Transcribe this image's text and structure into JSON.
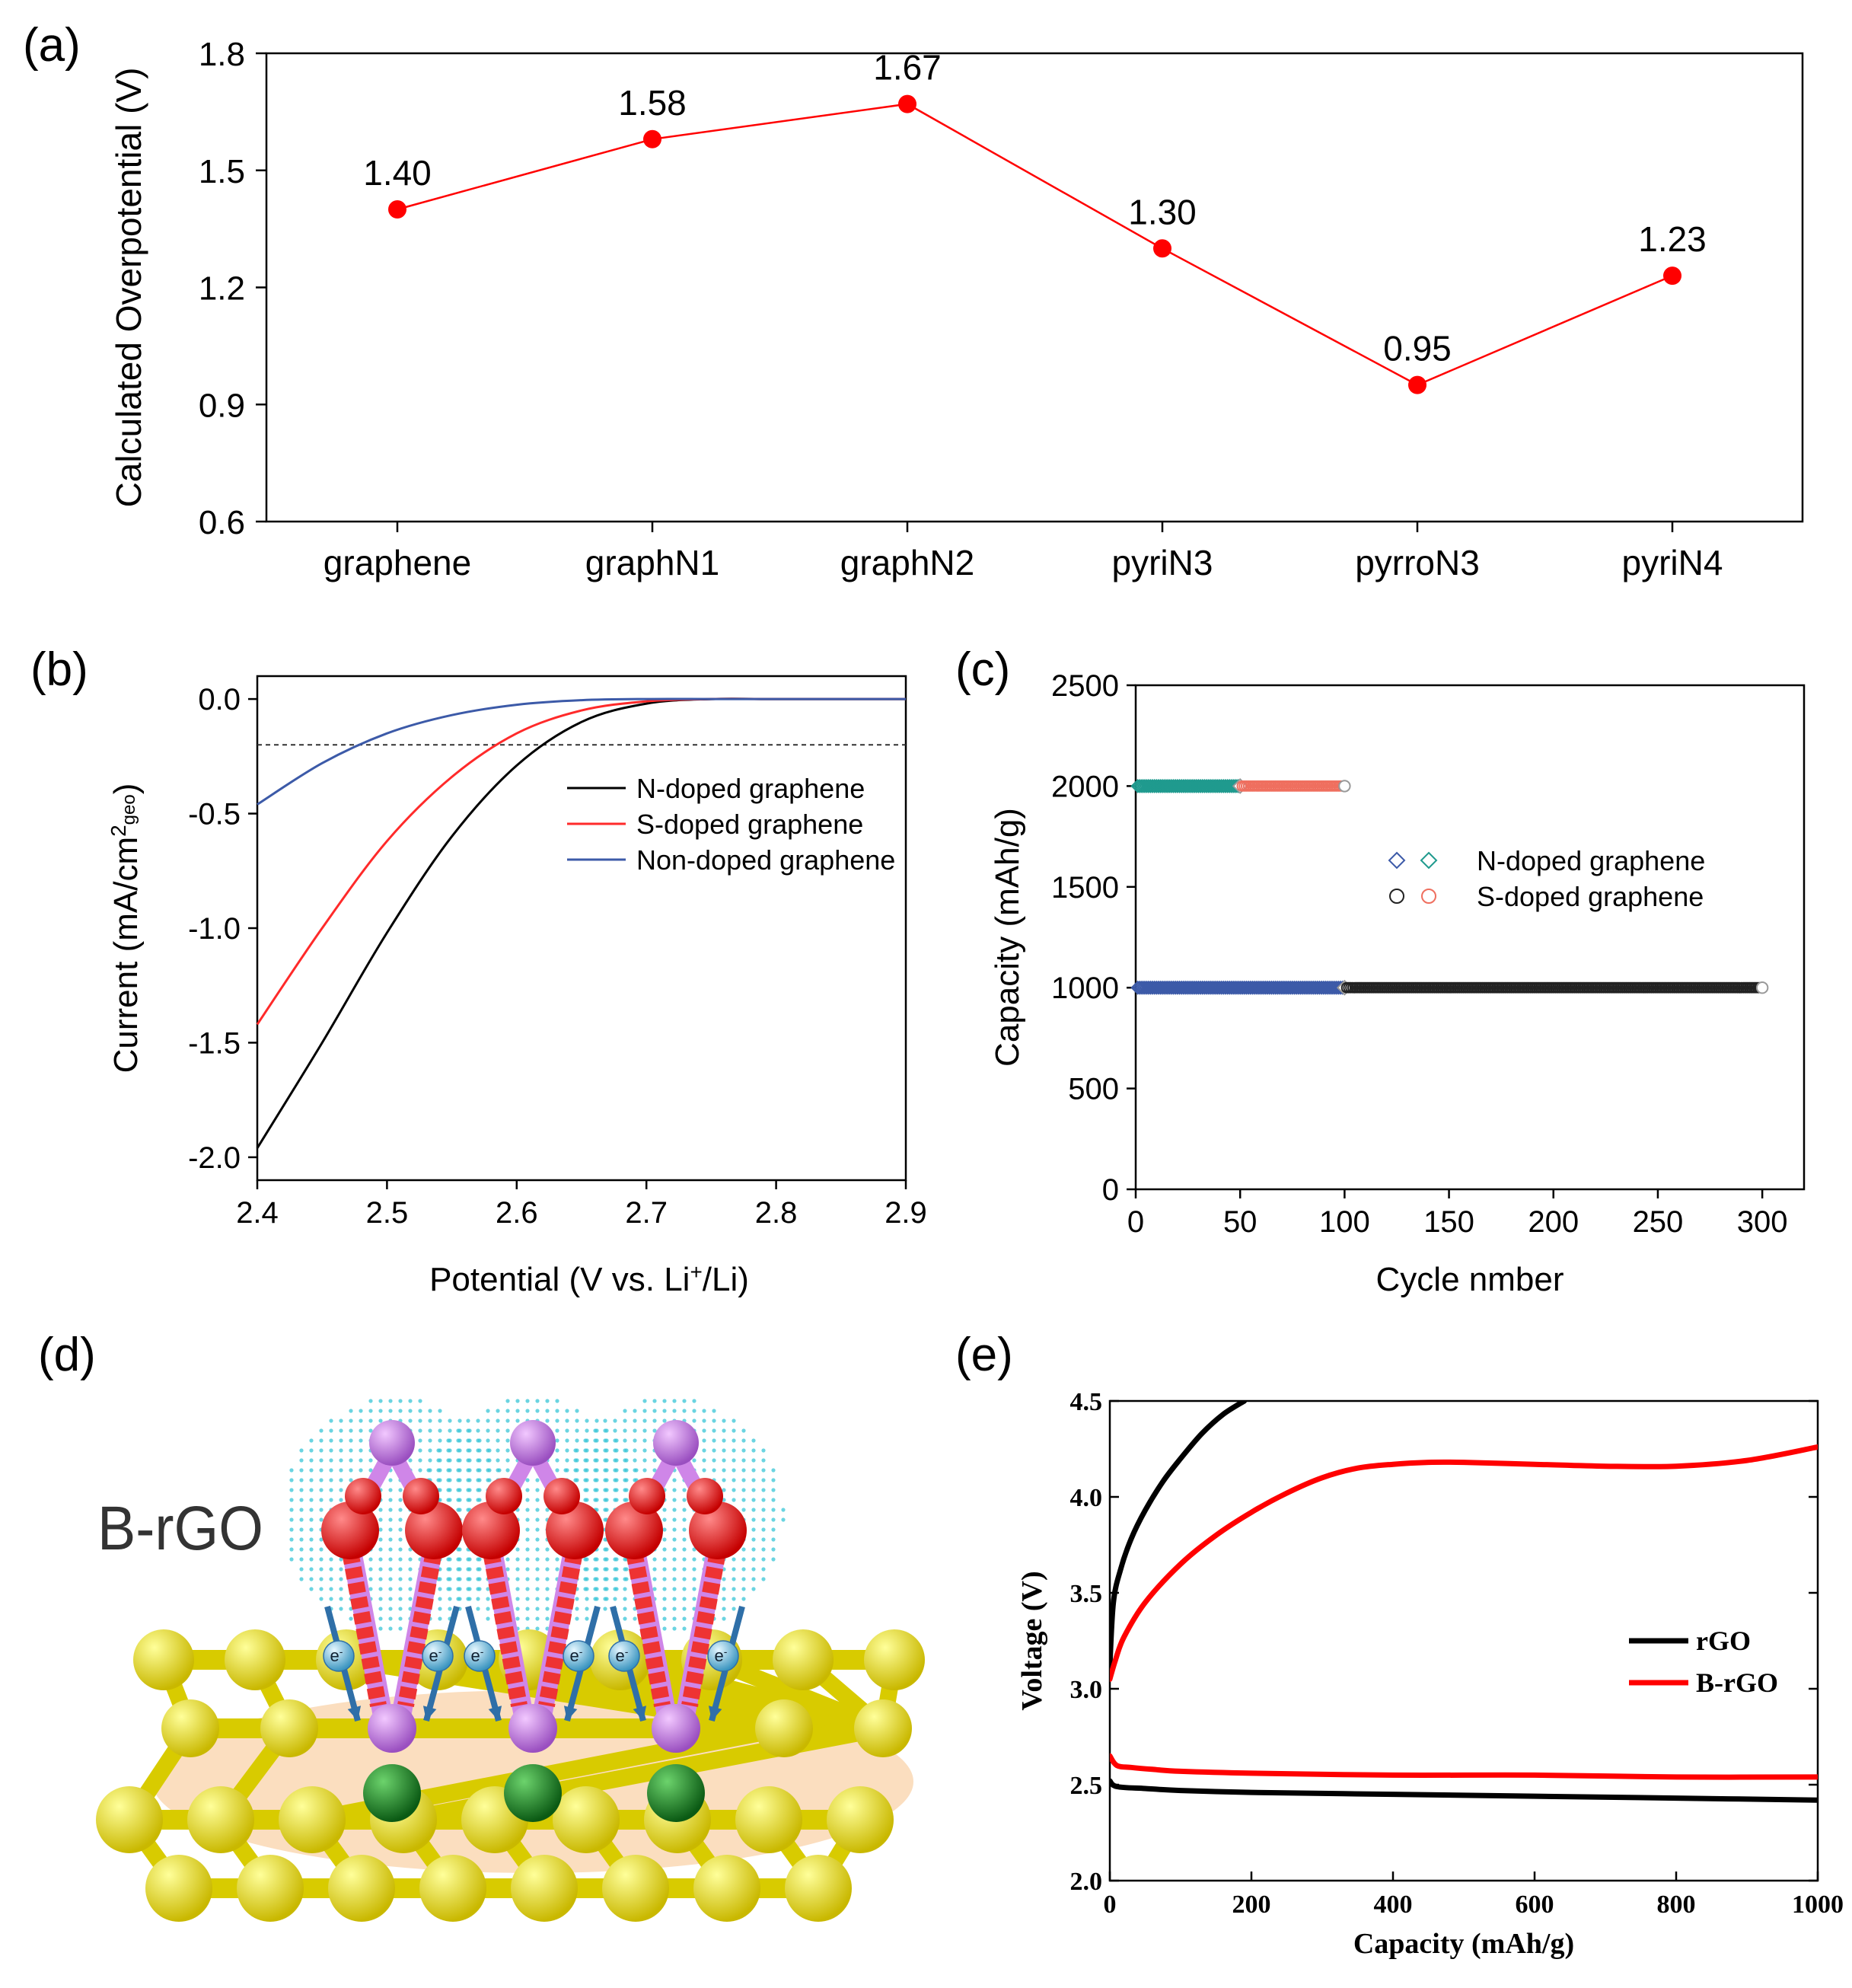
{
  "panel_labels": {
    "a": "(a)",
    "b": "(b)",
    "c": "(c)",
    "d": "(d)",
    "e": "(e)"
  },
  "panel_d": {
    "label": "B-rGO",
    "electron": "e",
    "electron_sup": "-"
  },
  "colors": {
    "red": "#ff0000",
    "black": "#000000",
    "blue": "#3c5aa8",
    "teal": "#1f9a8e",
    "salmon": "#ef6f5f",
    "yellow": "#f2ea12",
    "pink": "#cf86e8",
    "green": "#1d8a2e",
    "cyan": "#39c5d7"
  },
  "chart_data": [
    {
      "id": "a",
      "type": "line",
      "ylabel": "Calculated Overpotential (V)",
      "categories": [
        "graphene",
        "graphN1",
        "graphN2",
        "pyriN3",
        "pyrroN3",
        "pyriN4"
      ],
      "values": [
        1.4,
        1.58,
        1.67,
        1.3,
        0.95,
        1.23
      ],
      "data_labels": [
        "1.40",
        "1.58",
        "1.67",
        "1.30",
        "0.95",
        "1.23"
      ],
      "ylim": [
        0.6,
        1.8
      ],
      "yticks": [
        "0.6",
        "0.9",
        "1.2",
        "1.5",
        "1.8"
      ],
      "color": "#ff0000"
    },
    {
      "id": "b",
      "type": "line",
      "xlabel": "Potential (V vs. Li",
      "xlabel_sup": "+",
      "xlabel_end": "/Li)",
      "ylabel": "Current (mA/cm",
      "ylabel_sup": "2",
      "ylabel_sub": "geo",
      "ylabel_end": ")",
      "xlim": [
        2.4,
        2.9
      ],
      "ylim": [
        -2.1,
        0.1
      ],
      "xticks": [
        "2.4",
        "2.5",
        "2.6",
        "2.7",
        "2.8",
        "2.9"
      ],
      "yticks": [
        "0.0",
        "-0.5",
        "-1.0",
        "-1.5",
        "-2.0"
      ],
      "reference_line": -0.2,
      "legend": "top-right",
      "series": [
        {
          "name": "N-doped graphene",
          "color": "#000000",
          "x": [
            2.4,
            2.45,
            2.5,
            2.55,
            2.6,
            2.65,
            2.7,
            2.75,
            2.8,
            2.9
          ],
          "y": [
            -1.96,
            -1.5,
            -1.02,
            -0.6,
            -0.29,
            -0.1,
            -0.02,
            0.0,
            0.0,
            0.0
          ]
        },
        {
          "name": "S-doped graphene",
          "color": "#ff2a2a",
          "x": [
            2.4,
            2.45,
            2.5,
            2.55,
            2.6,
            2.65,
            2.7,
            2.75,
            2.8,
            2.9
          ],
          "y": [
            -1.42,
            -1.0,
            -0.62,
            -0.34,
            -0.15,
            -0.05,
            -0.01,
            0.0,
            0.0,
            0.0
          ]
        },
        {
          "name": "Non-doped graphene",
          "color": "#3c5aa8",
          "x": [
            2.4,
            2.45,
            2.5,
            2.55,
            2.6,
            2.65,
            2.7,
            2.75,
            2.8,
            2.9
          ],
          "y": [
            -0.46,
            -0.28,
            -0.15,
            -0.07,
            -0.025,
            -0.005,
            0.0,
            0.0,
            0.0,
            0.0
          ]
        }
      ]
    },
    {
      "id": "c",
      "type": "scatter",
      "xlabel": "Cycle nmber",
      "ylabel": "Capacity (mAh/g)",
      "xlim": [
        0,
        320
      ],
      "ylim": [
        0,
        2500
      ],
      "xticks": [
        "0",
        "50",
        "100",
        "150",
        "200",
        "250",
        "300"
      ],
      "yticks": [
        "0",
        "500",
        "1000",
        "1500",
        "2000",
        "2500"
      ],
      "legend": "center-right",
      "legend_entries": [
        "N-doped graphene",
        "S-doped graphene"
      ],
      "series": [
        {
          "group": "N-doped graphene",
          "marker": "diamond",
          "color": "#1f9a8e",
          "cycles": [
            1,
            50
          ],
          "capacity": 2000
        },
        {
          "group": "S-doped graphene",
          "marker": "circle",
          "color": "#ef6f5f",
          "cycles": [
            51,
            100
          ],
          "capacity": 2000
        },
        {
          "group": "N-doped graphene",
          "marker": "diamond",
          "color": "#3c5aa8",
          "cycles": [
            1,
            100
          ],
          "capacity": 1000
        },
        {
          "group": "S-doped graphene",
          "marker": "circle",
          "color": "#222222",
          "cycles": [
            101,
            300
          ],
          "capacity": 1000
        }
      ]
    },
    {
      "id": "e",
      "type": "line",
      "xlabel": "Capacity (mAh/g)",
      "ylabel": "Voltage (V)",
      "xlim": [
        0,
        1000
      ],
      "ylim": [
        2.0,
        4.5
      ],
      "xticks": [
        "0",
        "200",
        "400",
        "600",
        "800",
        "1000"
      ],
      "yticks": [
        "2.0",
        "2.5",
        "3.0",
        "3.5",
        "4.0",
        "4.5"
      ],
      "legend": "right",
      "legend_entries": [
        {
          "name": "rGO",
          "color": "#000000"
        },
        {
          "name": "B-rGO",
          "color": "#ff0000"
        }
      ],
      "series": [
        {
          "name": "rGO",
          "color": "#000000",
          "x": [
            0,
            5,
            15,
            30,
            50,
            75,
            100,
            130,
            160,
            190
          ],
          "y": [
            3.12,
            3.45,
            3.62,
            3.78,
            3.93,
            4.08,
            4.2,
            4.33,
            4.43,
            4.5
          ]
        },
        {
          "name": "rGO",
          "color": "#000000",
          "x": [
            0,
            10,
            50,
            100,
            200,
            400,
            600,
            800,
            1000
          ],
          "y": [
            2.52,
            2.49,
            2.48,
            2.47,
            2.46,
            2.45,
            2.44,
            2.43,
            2.42
          ]
        },
        {
          "name": "B-rGO",
          "color": "#ff0000",
          "x": [
            0,
            8,
            20,
            50,
            100,
            150,
            200,
            250,
            300,
            350,
            400,
            450,
            500,
            600,
            700,
            800,
            900,
            1000
          ],
          "y": [
            3.05,
            3.15,
            3.27,
            3.45,
            3.65,
            3.8,
            3.92,
            4.02,
            4.1,
            4.15,
            4.17,
            4.18,
            4.18,
            4.17,
            4.16,
            4.16,
            4.19,
            4.26
          ]
        },
        {
          "name": "B-rGO",
          "color": "#ff0000",
          "x": [
            0,
            10,
            30,
            60,
            100,
            200,
            400,
            600,
            800,
            1000
          ],
          "y": [
            2.65,
            2.6,
            2.59,
            2.58,
            2.57,
            2.56,
            2.55,
            2.55,
            2.54,
            2.54
          ]
        }
      ]
    }
  ]
}
